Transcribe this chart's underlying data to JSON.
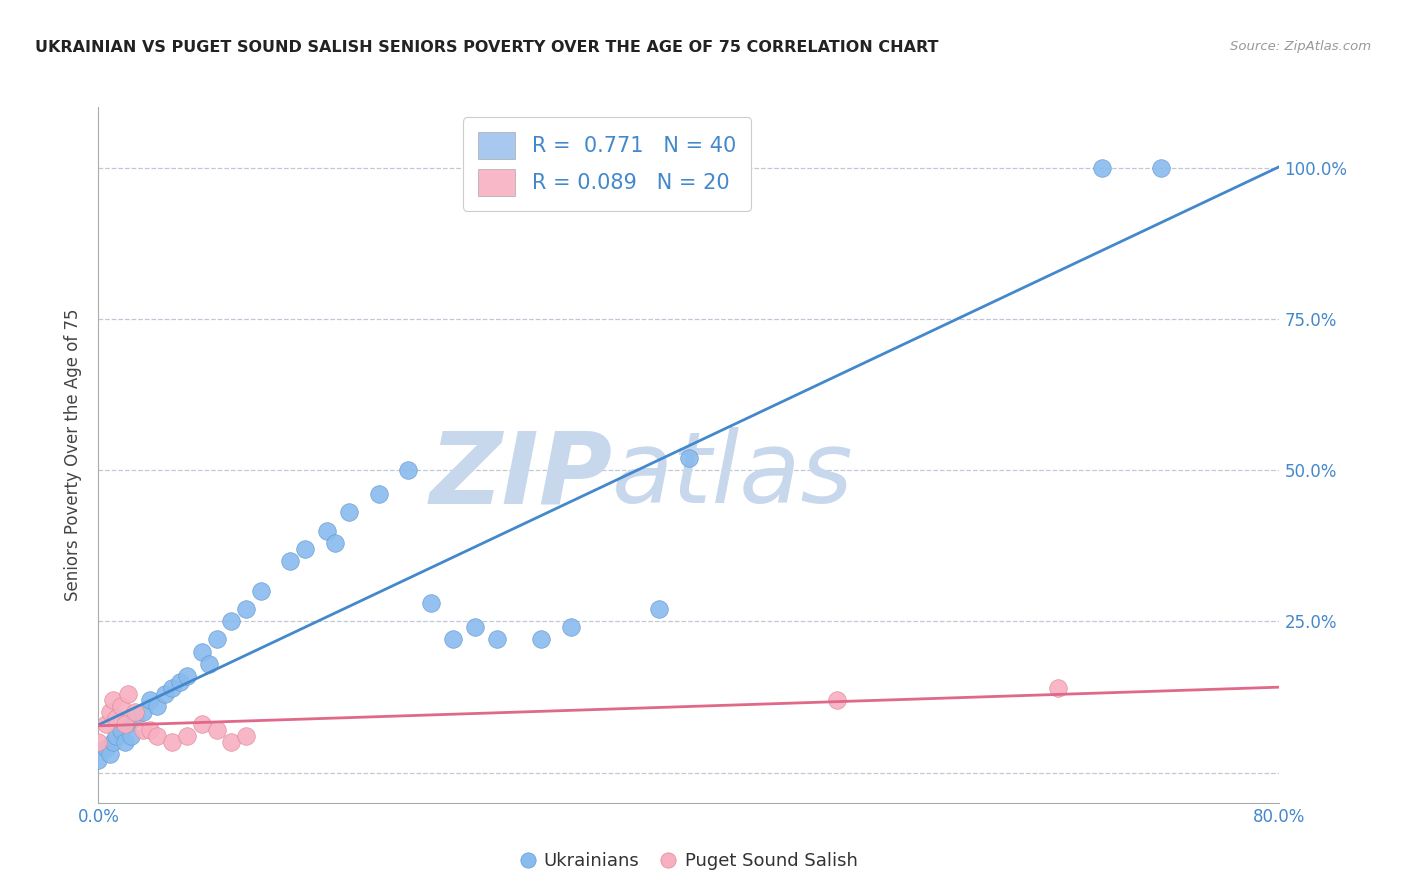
{
  "title": "UKRAINIAN VS PUGET SOUND SALISH SENIORS POVERTY OVER THE AGE OF 75 CORRELATION CHART",
  "source": "Source: ZipAtlas.com",
  "ylabel": "Seniors Poverty Over the Age of 75",
  "xlim": [
    0.0,
    0.8
  ],
  "ylim": [
    -0.05,
    1.1
  ],
  "background_color": "#ffffff",
  "grid_color": "#c0c8d8",
  "legend_color_blue": "#a8c8f0",
  "legend_color_pink": "#f8b8c8",
  "blue_line_color": "#4488cc",
  "pink_line_color": "#e06888",
  "blue_dot_color": "#88bbee",
  "blue_dot_edge": "#6699cc",
  "pink_dot_color": "#f8b0c0",
  "pink_dot_edge": "#dd8899",
  "R_ukrainian": 0.771,
  "R_salish": 0.089,
  "N_ukrainian": 40,
  "N_salish": 20,
  "ukrainian_x": [
    0.0,
    0.005,
    0.008,
    0.01,
    0.012,
    0.015,
    0.018,
    0.02,
    0.022,
    0.025,
    0.03,
    0.035,
    0.04,
    0.045,
    0.05,
    0.055,
    0.06,
    0.07,
    0.075,
    0.08,
    0.09,
    0.1,
    0.11,
    0.13,
    0.14,
    0.155,
    0.16,
    0.17,
    0.19,
    0.21,
    0.225,
    0.24,
    0.255,
    0.27,
    0.3,
    0.32,
    0.38,
    0.4,
    0.68,
    0.72
  ],
  "ukrainian_y": [
    0.02,
    0.04,
    0.03,
    0.05,
    0.06,
    0.07,
    0.05,
    0.08,
    0.06,
    0.09,
    0.1,
    0.12,
    0.11,
    0.13,
    0.14,
    0.15,
    0.16,
    0.2,
    0.18,
    0.22,
    0.25,
    0.27,
    0.3,
    0.35,
    0.37,
    0.4,
    0.38,
    0.43,
    0.46,
    0.5,
    0.28,
    0.22,
    0.24,
    0.22,
    0.22,
    0.24,
    0.27,
    0.52,
    1.0,
    1.0
  ],
  "salish_x": [
    0.0,
    0.005,
    0.008,
    0.01,
    0.012,
    0.015,
    0.018,
    0.02,
    0.025,
    0.03,
    0.035,
    0.04,
    0.05,
    0.06,
    0.07,
    0.08,
    0.09,
    0.1,
    0.5,
    0.65
  ],
  "salish_y": [
    0.05,
    0.08,
    0.1,
    0.12,
    0.09,
    0.11,
    0.08,
    0.13,
    0.1,
    0.07,
    0.07,
    0.06,
    0.05,
    0.06,
    0.08,
    0.07,
    0.05,
    0.06,
    0.12,
    0.14
  ],
  "watermark_zip_color": "#c8d8ec",
  "watermark_atlas_color": "#c8d8ec"
}
